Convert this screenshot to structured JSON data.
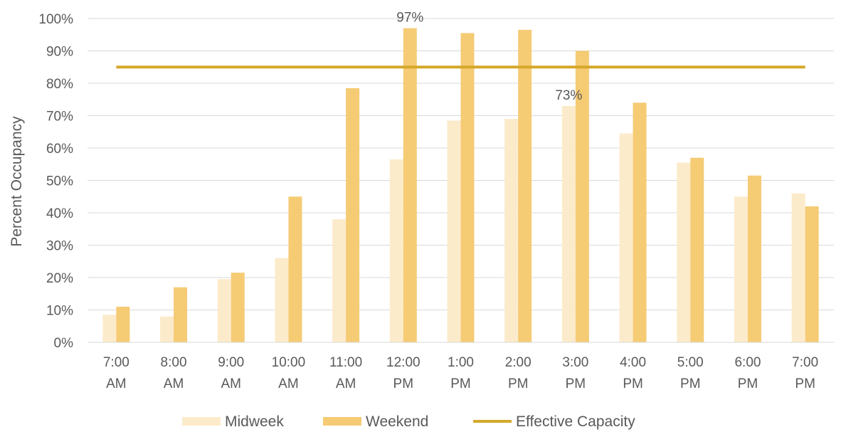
{
  "chart_data": {
    "type": "bar",
    "ylabel": "Percent Occupancy",
    "ylim": [
      0,
      100
    ],
    "yticks": [
      "0%",
      "10%",
      "20%",
      "30%",
      "40%",
      "50%",
      "60%",
      "70%",
      "80%",
      "90%",
      "100%"
    ],
    "grid": true,
    "legend_position": "bottom",
    "categories": [
      [
        "7:00",
        "AM"
      ],
      [
        "8:00",
        "AM"
      ],
      [
        "9:00",
        "AM"
      ],
      [
        "10:00",
        "AM"
      ],
      [
        "11:00",
        "AM"
      ],
      [
        "12:00",
        "PM"
      ],
      [
        "1:00",
        "PM"
      ],
      [
        "2:00",
        "PM"
      ],
      [
        "3:00",
        "PM"
      ],
      [
        "4:00",
        "PM"
      ],
      [
        "5:00",
        "PM"
      ],
      [
        "6:00",
        "PM"
      ],
      [
        "7:00",
        "PM"
      ]
    ],
    "series": [
      {
        "name": "Midweek",
        "color": "#FCEBCB",
        "values": [
          8.5,
          8,
          19.5,
          26,
          38,
          56.5,
          68.5,
          69,
          73,
          64.5,
          55.5,
          45,
          46
        ]
      },
      {
        "name": "Weekend",
        "color": "#F5CB74",
        "values": [
          11,
          17,
          21.5,
          45,
          78.5,
          97,
          95.5,
          96.5,
          90,
          74,
          57,
          51.5,
          42
        ]
      }
    ],
    "reference_line": {
      "name": "Effective Capacity",
      "value": 85,
      "color": "#D4A82A"
    },
    "data_labels": [
      {
        "series": 1,
        "index": 5,
        "text": "97%"
      },
      {
        "series": 0,
        "index": 8,
        "text": "73%"
      }
    ]
  }
}
